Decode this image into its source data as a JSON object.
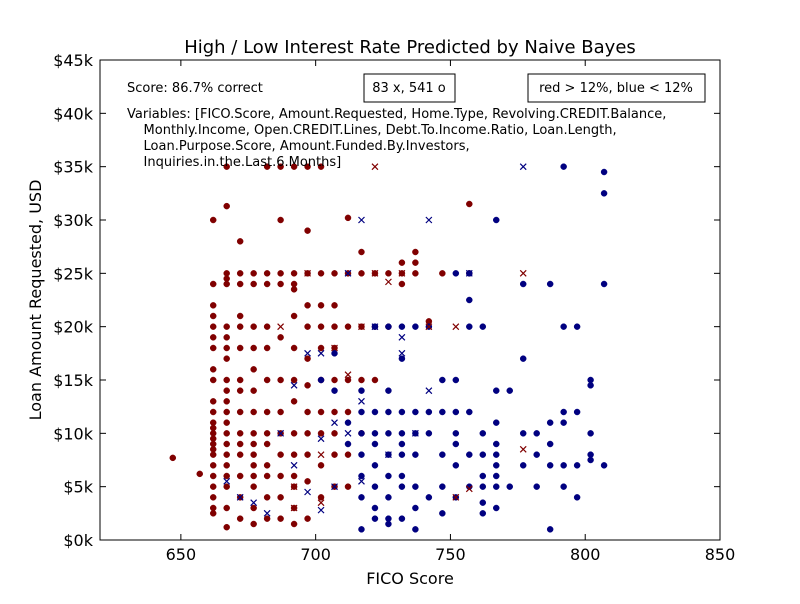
{
  "chart_data": {
    "type": "scatter",
    "title": "High / Low Interest Rate Predicted by Naive Bayes",
    "xlabel": "FICO Score",
    "ylabel": "Loan Amount Requested, USD",
    "xlim": [
      620,
      850
    ],
    "ylim": [
      0,
      45000
    ],
    "xticks": [
      650,
      700,
      750,
      800,
      850
    ],
    "yticks": [
      0,
      5000,
      10000,
      15000,
      20000,
      25000,
      30000,
      35000,
      40000,
      45000
    ],
    "ytick_labels": [
      "$0k",
      "$5k",
      "$10k",
      "$15k",
      "$20k",
      "$25k",
      "$30k",
      "$35k",
      "$40k",
      "$45k"
    ],
    "grid": false,
    "annotations": {
      "score": "Score: 86.7% correct",
      "shape": "83 x, 541 o",
      "legend_note": "red > 12%, blue < 12%",
      "variables_lines": [
        "Variables: [FICO.Score, Amount.Requested, Home.Type, Revolving.CREDIT.Balance,",
        "    Monthly.Income, Open.CREDIT.Lines, Debt.To.Income.Ratio, Loan.Length,",
        "    Loan.Purpose.Score, Amount.Funded.By.Investors,",
        "    Inquiries.in.the.Last.6.Months]"
      ]
    },
    "colors": {
      "red": "#800000",
      "blue": "#000080"
    },
    "series": [
      {
        "marker": "o",
        "color": "red",
        "x": [
          647,
          657,
          662,
          662,
          662,
          662,
          662,
          662,
          662,
          662,
          662,
          662,
          662,
          662,
          662,
          662,
          662,
          662,
          662,
          662,
          662,
          662,
          662,
          662,
          662,
          662,
          667,
          667,
          667,
          667,
          667,
          667,
          667,
          667,
          667,
          667,
          667,
          667,
          667,
          667,
          667,
          667,
          667,
          667,
          667,
          667,
          667,
          667,
          672,
          672,
          672,
          672,
          672,
          672,
          672,
          672,
          672,
          672,
          672,
          672,
          672,
          672,
          672,
          677,
          677,
          677,
          677,
          677,
          677,
          677,
          677,
          677,
          677,
          677,
          677,
          677,
          677,
          677,
          682,
          682,
          682,
          682,
          682,
          682,
          682,
          682,
          682,
          682,
          682,
          682,
          682,
          687,
          687,
          687,
          687,
          687,
          687,
          687,
          687,
          687,
          687,
          687,
          687,
          692,
          692,
          692,
          692,
          692,
          692,
          692,
          692,
          692,
          692,
          692,
          692,
          692,
          692,
          697,
          697,
          697,
          697,
          697,
          697,
          697,
          697,
          697,
          697,
          697,
          697,
          702,
          702,
          702,
          702,
          702,
          702,
          702,
          702,
          702,
          702,
          707,
          707,
          707,
          707,
          707,
          707,
          707,
          707,
          707,
          712,
          712,
          712,
          712,
          712,
          712,
          712,
          717,
          717,
          717,
          717,
          717,
          722,
          722,
          722,
          727,
          727,
          732,
          732,
          732,
          737,
          737,
          737,
          742,
          747,
          757,
          757
        ],
        "y": [
          7700,
          6200,
          30000,
          24000,
          22000,
          21000,
          20000,
          19000,
          18000,
          16000,
          15000,
          13000,
          12000,
          11000,
          10500,
          10000,
          9500,
          9000,
          8500,
          8000,
          7000,
          6000,
          5000,
          4000,
          3000,
          2500,
          35000,
          31300,
          25000,
          24500,
          24000,
          20000,
          19000,
          18000,
          17000,
          15000,
          14000,
          13000,
          12000,
          11000,
          10000,
          9000,
          8000,
          7000,
          6000,
          5000,
          3000,
          1200,
          28000,
          25000,
          24000,
          21000,
          20000,
          18000,
          15000,
          14000,
          12000,
          10000,
          9000,
          8000,
          6000,
          4000,
          2000,
          25000,
          24000,
          20000,
          18000,
          16000,
          14000,
          12000,
          10000,
          9000,
          8000,
          7000,
          6000,
          5000,
          3000,
          1500,
          35000,
          25000,
          24000,
          20000,
          18000,
          15000,
          12000,
          10000,
          9000,
          7000,
          6000,
          4000,
          2000,
          35000,
          30000,
          25000,
          24000,
          19000,
          15000,
          12000,
          10000,
          8000,
          6000,
          4000,
          2000,
          35000,
          25000,
          24000,
          23500,
          21000,
          18000,
          15000,
          13000,
          10000,
          8000,
          6000,
          5000,
          3000,
          1500,
          35000,
          29000,
          25000,
          22000,
          20000,
          17000,
          14500,
          12000,
          10000,
          8000,
          5500,
          2000,
          35000,
          25000,
          22000,
          20000,
          18000,
          15000,
          12000,
          10000,
          7000,
          4000,
          25000,
          22000,
          20000,
          18000,
          15000,
          12000,
          10000,
          8000,
          5000,
          30200,
          25000,
          20000,
          15000,
          12000,
          8000,
          5000,
          27000,
          25000,
          20000,
          15000,
          10000,
          25000,
          20000,
          15000,
          25000,
          20000,
          26000,
          25000,
          24000,
          27000,
          26000,
          25000,
          20500,
          25000,
          25000,
          31500
        ]
      },
      {
        "marker": "o",
        "color": "blue",
        "x": [
          702,
          707,
          707,
          712,
          712,
          717,
          717,
          717,
          717,
          717,
          717,
          717,
          722,
          722,
          722,
          722,
          722,
          722,
          722,
          722,
          727,
          727,
          727,
          727,
          727,
          727,
          727,
          727,
          727,
          732,
          732,
          732,
          732,
          732,
          732,
          732,
          732,
          732,
          737,
          737,
          737,
          737,
          737,
          737,
          737,
          742,
          742,
          742,
          742,
          747,
          747,
          747,
          747,
          747,
          752,
          752,
          752,
          752,
          752,
          752,
          752,
          757,
          757,
          757,
          757,
          757,
          757,
          762,
          762,
          762,
          762,
          762,
          762,
          762,
          767,
          767,
          767,
          767,
          767,
          767,
          767,
          767,
          767,
          772,
          772,
          777,
          777,
          777,
          777,
          782,
          782,
          782,
          787,
          787,
          787,
          787,
          787,
          792,
          792,
          792,
          792,
          792,
          792,
          797,
          797,
          797,
          797,
          802,
          802,
          802,
          802,
          807,
          807,
          807,
          807,
          802
        ],
        "y": [
          15000,
          17500,
          14000,
          11000,
          9000,
          14000,
          12000,
          10000,
          8000,
          6000,
          4000,
          1000,
          20000,
          12000,
          10000,
          9000,
          7000,
          5000,
          3000,
          2000,
          20000,
          14000,
          12000,
          10000,
          8000,
          6000,
          4000,
          2000,
          1500,
          20000,
          17000,
          12000,
          10000,
          9000,
          8000,
          6000,
          5000,
          2000,
          20000,
          12000,
          10000,
          8000,
          5000,
          3000,
          1000,
          20000,
          12000,
          10000,
          4000,
          15000,
          12000,
          8000,
          5000,
          2500,
          25000,
          15000,
          12000,
          10000,
          9000,
          7000,
          4000,
          25000,
          22500,
          20000,
          12000,
          8000,
          5000,
          20000,
          10000,
          8000,
          6000,
          5000,
          3500,
          2500,
          30000,
          14000,
          11000,
          9000,
          8000,
          7000,
          6000,
          5000,
          3000,
          14000,
          5000,
          24000,
          17000,
          10000,
          7000,
          10000,
          8000,
          5000,
          24000,
          11000,
          9000,
          7000,
          1000,
          35000,
          20000,
          12000,
          11000,
          7000,
          5000,
          20000,
          12000,
          7000,
          4000,
          15000,
          14500,
          10000,
          8000,
          34500,
          32500,
          24000,
          7000,
          7500
        ]
      },
      {
        "marker": "x",
        "color": "red",
        "x": [
          687,
          692,
          692,
          697,
          702,
          702,
          707,
          712,
          717,
          722,
          722,
          727,
          732,
          742,
          752,
          752,
          757,
          777,
          777
        ],
        "y": [
          20000,
          5000,
          3000,
          25000,
          8000,
          3500,
          18000,
          15500,
          20000,
          25000,
          35000,
          24200,
          25000,
          20000,
          20000,
          4000,
          4800,
          25000,
          8500
        ]
      },
      {
        "marker": "x",
        "color": "blue",
        "x": [
          667,
          672,
          677,
          682,
          687,
          692,
          692,
          697,
          697,
          702,
          702,
          702,
          707,
          707,
          712,
          712,
          717,
          717,
          717,
          722,
          727,
          732,
          732,
          737,
          742,
          742,
          757,
          777
        ],
        "y": [
          5500,
          4000,
          3500,
          2500,
          10000,
          14500,
          7000,
          17500,
          4500,
          17500,
          9500,
          2800,
          11000,
          5000,
          25000,
          10000,
          30000,
          13000,
          5500,
          20000,
          8000,
          19000,
          17500,
          10000,
          30000,
          14000,
          25000,
          35000
        ]
      }
    ]
  }
}
